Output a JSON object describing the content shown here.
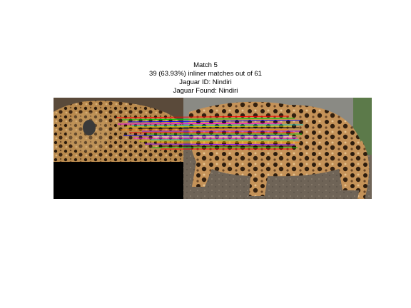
{
  "figure": {
    "title_lines": [
      "Match 5",
      "39 (63.93%) inliner matches out of 61",
      "Jaguar ID: Nindiri",
      "Jaguar Found: Nindiri"
    ],
    "left_image": "jaguar head and shoulder crop (query)",
    "right_image": "jaguar full-body side view (reference)",
    "match_line_colors": [
      "#ff0000",
      "#00cc00",
      "#0000ff",
      "#ff00ff",
      "#00cccc",
      "#cccc00",
      "#000000",
      "#ffffff",
      "#ff8800",
      "#8800ff"
    ]
  }
}
